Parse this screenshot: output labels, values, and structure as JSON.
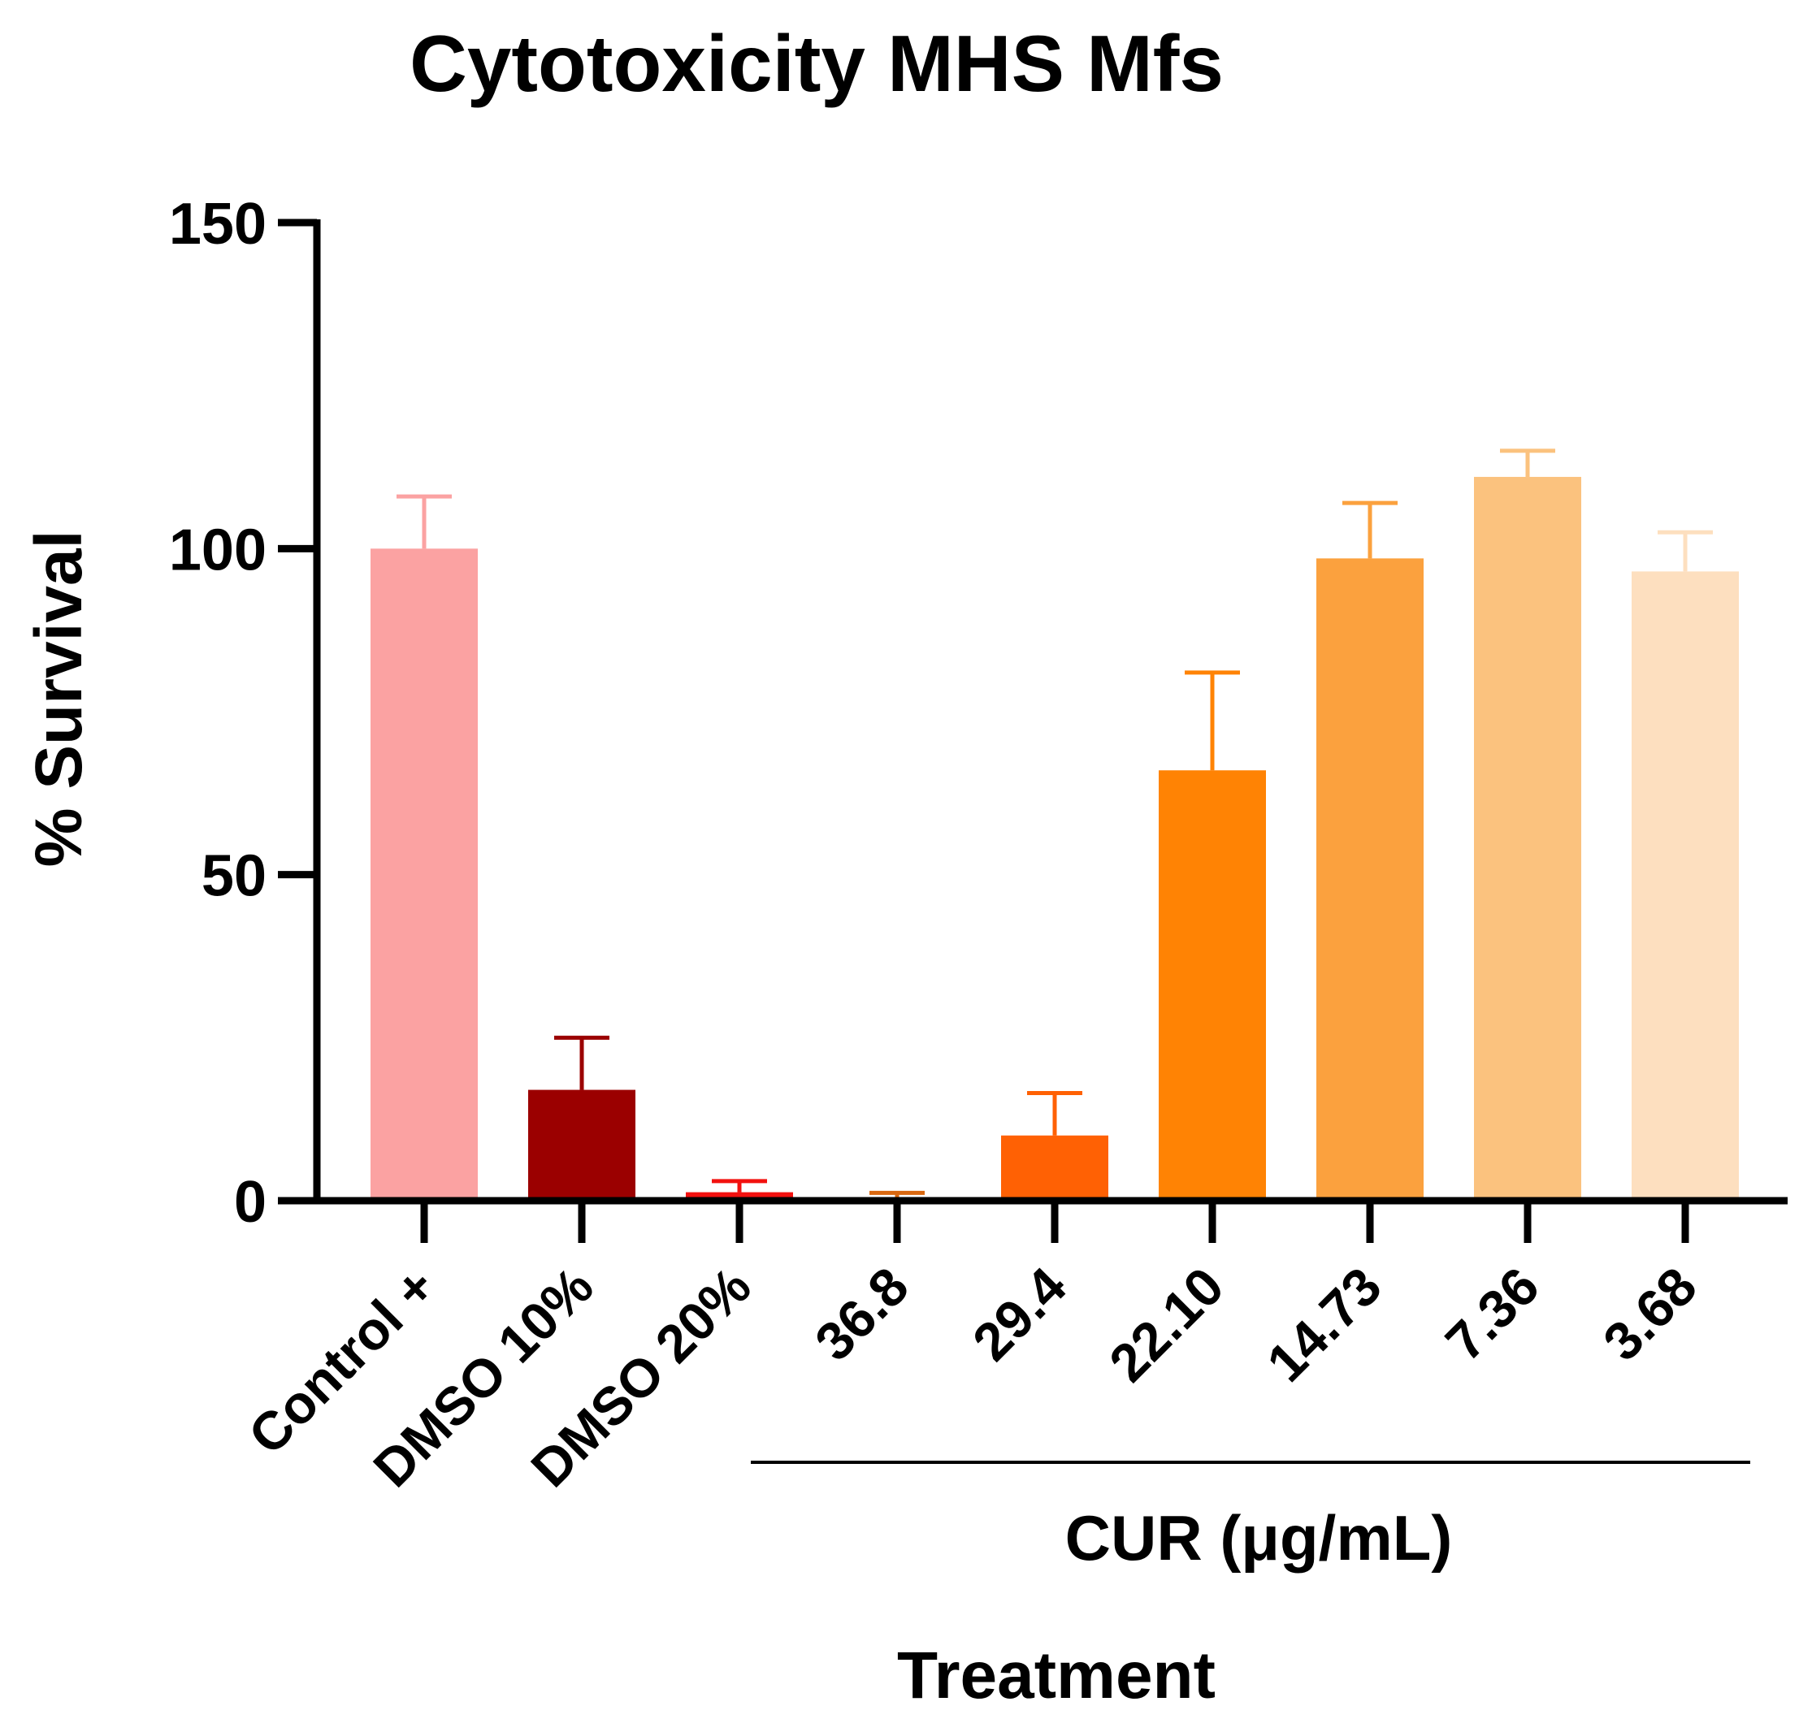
{
  "chart_data": {
    "type": "bar",
    "title": "Cytotoxicity MHS Mfs",
    "xlabel": "Treatment",
    "ylabel": "% Survival",
    "ylim": [
      0,
      150
    ],
    "yticks": [
      "0",
      "50",
      "100",
      "150"
    ],
    "ytick_values": [
      0,
      50,
      100,
      150
    ],
    "categories": [
      "Control +",
      "DMSO 10%",
      "DMSO 20%",
      "36.8",
      "29.4",
      "22.10",
      "14.73",
      "7.36",
      "3.68"
    ],
    "values": [
      100,
      17,
      1.3,
      0.4,
      10,
      66,
      98.5,
      111,
      96.5
    ],
    "error_upper": [
      8,
      8,
      1.7,
      0.8,
      6.5,
      15,
      8.5,
      4,
      6
    ],
    "colors": [
      "#FBA2A2",
      "#9B0000",
      "#F2110F",
      "#D9670F",
      "#FF6104",
      "#FF8304",
      "#FBA13E",
      "#FBC27E",
      "#FDDFBF"
    ],
    "group": {
      "label": "CUR (μg/mL)",
      "from_index": 3,
      "to_index": 8
    },
    "grid": false,
    "legend": "none"
  }
}
